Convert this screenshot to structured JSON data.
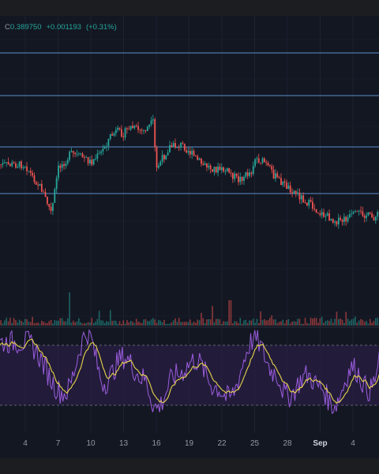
{
  "legend": {
    "close_prefix": "C",
    "close_value": "0.389750",
    "change": "+0.001193",
    "change_pct": "(+0.31%)"
  },
  "colors": {
    "background": "#131722",
    "up_candle": "#26a69a",
    "down_candle": "#ef5350",
    "level_line": "#5b8ec9",
    "rsi_line": "#9c5ddf",
    "rsi_signal": "#e8d44d",
    "rsi_band": "#2a1f44"
  },
  "chart_data": [
    {
      "type": "candlestick",
      "name": "price",
      "x_tick_labels": [
        "4",
        "7",
        "10",
        "13",
        "16",
        "19",
        "22",
        "25",
        "28",
        "Sep",
        "4"
      ],
      "horizontal_levels": [
        1,
        2,
        3,
        4
      ],
      "close_path": [
        [
          0,
          0.47
        ],
        [
          0.2,
          0.42
        ],
        [
          0.5,
          0.36
        ],
        [
          0.8,
          0.25
        ],
        [
          1.0,
          0.45
        ],
        [
          1.4,
          0.52
        ],
        [
          1.8,
          0.5
        ],
        [
          2.0,
          0.48
        ],
        [
          2.3,
          0.52
        ],
        [
          2.6,
          0.6
        ],
        [
          2.8,
          0.62
        ],
        [
          3.0,
          0.61
        ],
        [
          3.2,
          0.64
        ],
        [
          3.6,
          0.62
        ],
        [
          3.9,
          0.66
        ],
        [
          4.0,
          0.45
        ],
        [
          4.4,
          0.55
        ],
        [
          4.8,
          0.56
        ],
        [
          5.0,
          0.53
        ],
        [
          5.4,
          0.47
        ],
        [
          5.8,
          0.45
        ],
        [
          6.2,
          0.44
        ],
        [
          6.5,
          0.4
        ],
        [
          6.9,
          0.44
        ],
        [
          7.0,
          0.5
        ],
        [
          7.3,
          0.48
        ],
        [
          7.6,
          0.42
        ],
        [
          7.9,
          0.38
        ],
        [
          8.2,
          0.35
        ],
        [
          8.6,
          0.3
        ],
        [
          9.0,
          0.25
        ],
        [
          9.3,
          0.23
        ],
        [
          9.6,
          0.21
        ],
        [
          10.0,
          0.24
        ],
        [
          10.3,
          0.25
        ],
        [
          10.6,
          0.23
        ],
        [
          11.0,
          0.26
        ],
        [
          11.4,
          0.24
        ],
        [
          11.6,
          0.21
        ],
        [
          12.0,
          0.23
        ],
        [
          12.2,
          0.26
        ]
      ],
      "volume": "bars",
      "price_domain": [
        0,
        1
      ],
      "x_domain": [
        -1,
        11.6
      ]
    },
    {
      "type": "line",
      "name": "RSI",
      "bands": [
        30,
        70
      ],
      "y_domain": [
        20,
        80
      ],
      "x_domain": [
        -1,
        11.6
      ],
      "peaks": [
        [
          0.0,
          72
        ],
        [
          1.2,
          38
        ],
        [
          1.9,
          78
        ],
        [
          2.4,
          45
        ],
        [
          3.0,
          62
        ],
        [
          3.6,
          48
        ],
        [
          4.0,
          28
        ],
        [
          4.6,
          50
        ],
        [
          5.2,
          60
        ],
        [
          5.8,
          42
        ],
        [
          6.2,
          35
        ],
        [
          7.0,
          74
        ],
        [
          7.6,
          52
        ],
        [
          8.0,
          36
        ],
        [
          8.6,
          50
        ],
        [
          9.0,
          42
        ],
        [
          9.4,
          30
        ],
        [
          10.0,
          55
        ],
        [
          10.5,
          40
        ],
        [
          11.0,
          68
        ],
        [
          11.6,
          78
        ]
      ]
    }
  ]
}
